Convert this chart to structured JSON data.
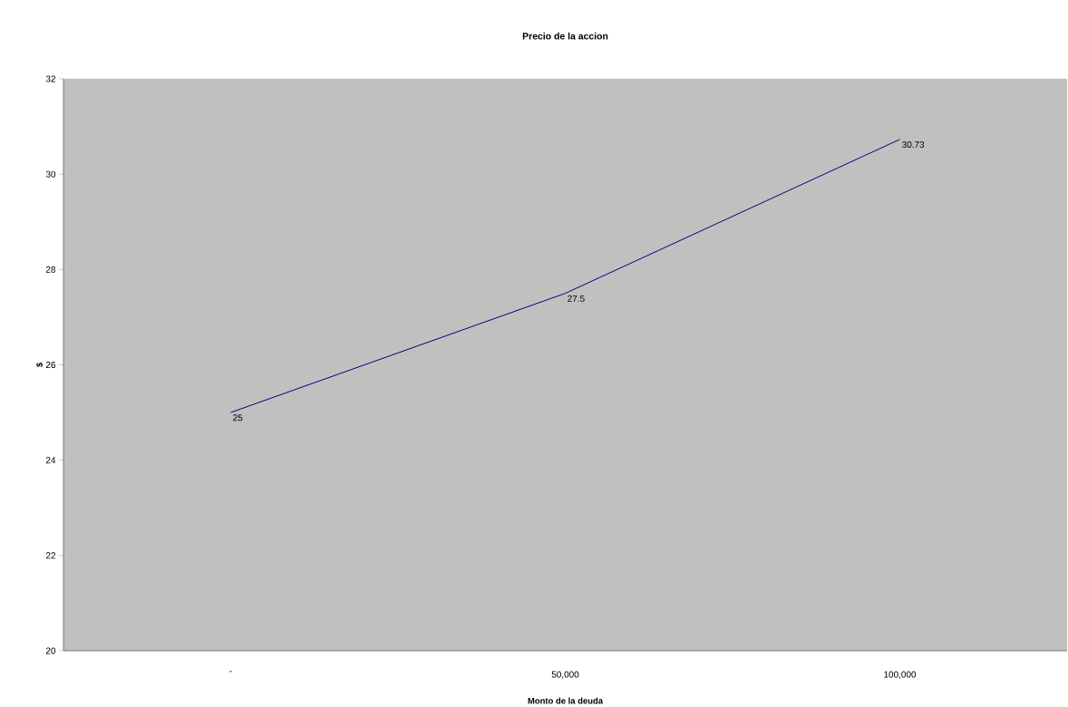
{
  "chart_data": {
    "type": "line",
    "title": "Precio de la accion",
    "xlabel": "Monto de la deuda",
    "ylabel": "$",
    "categories": [
      "-",
      "50,000",
      "100,000"
    ],
    "values": [
      25,
      27.5,
      30.73
    ],
    "value_labels": [
      "25",
      "27.5",
      "30.73"
    ],
    "color": "#000080",
    "ylim": [
      20,
      32
    ],
    "yticks": [
      20,
      22,
      24,
      26,
      28,
      30,
      32
    ]
  }
}
